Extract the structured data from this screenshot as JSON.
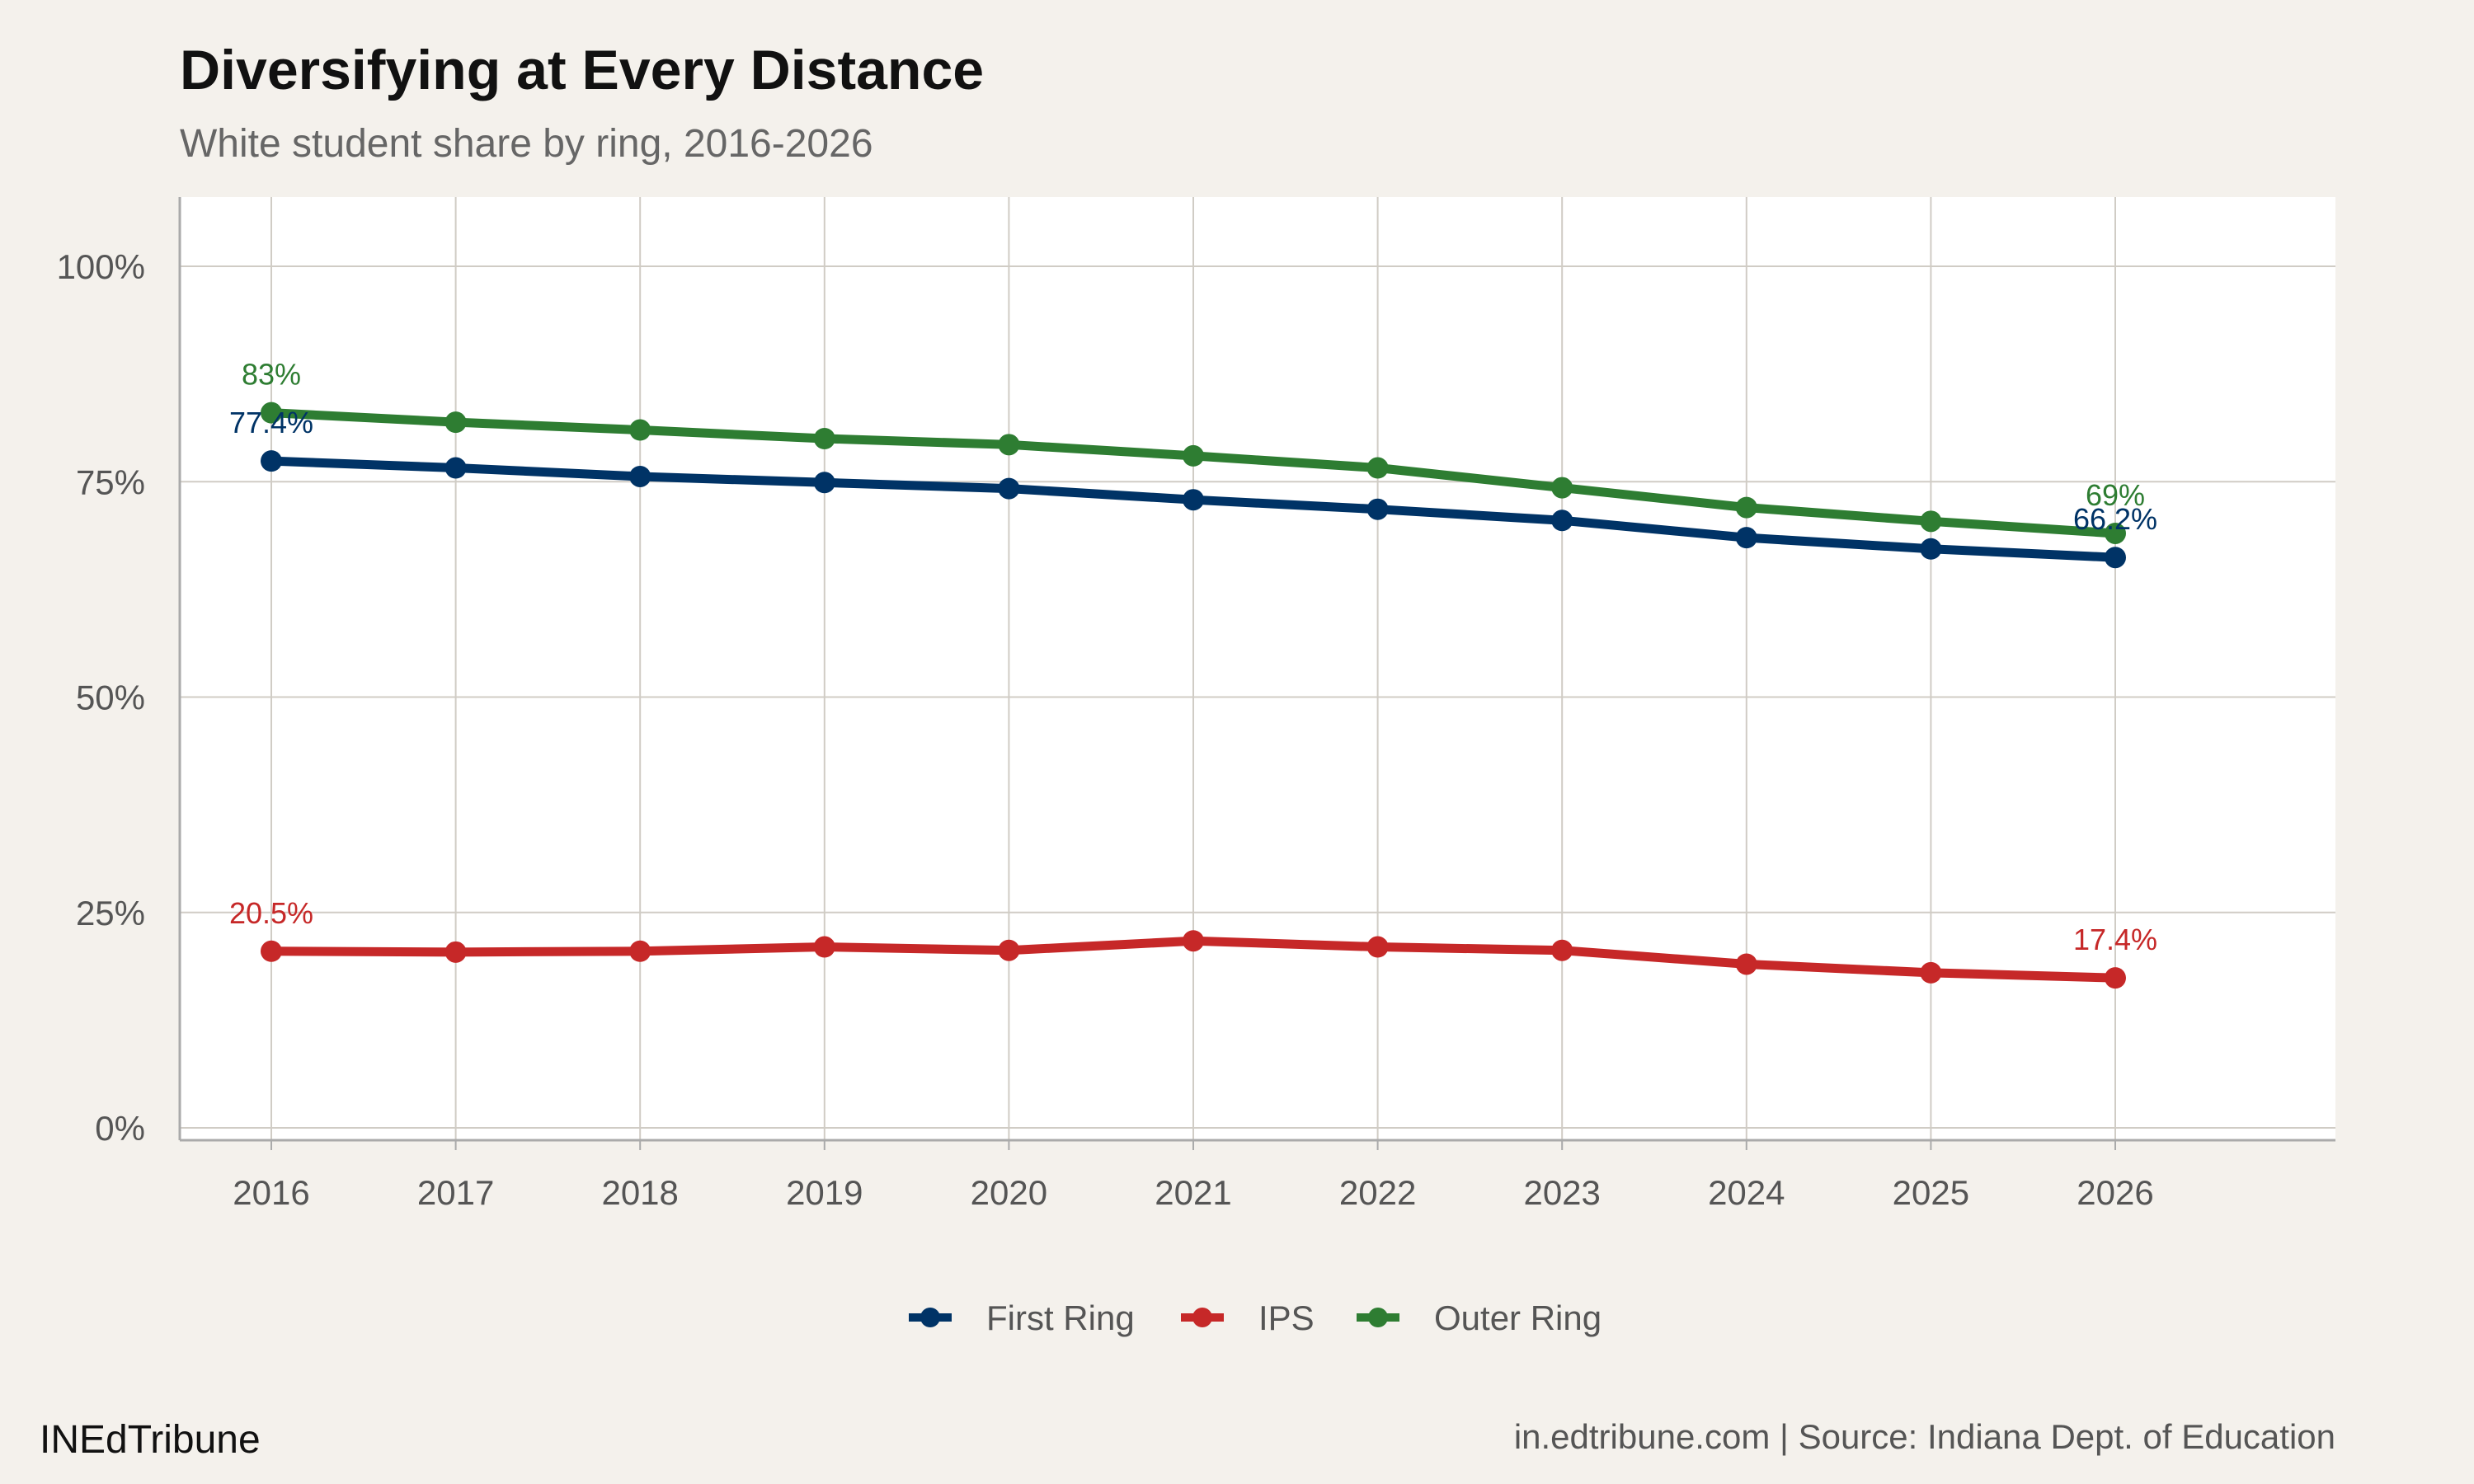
{
  "chart_data": {
    "type": "line",
    "title": "Diversifying at Every Distance",
    "subtitle": "White student share by ring, 2016-2026",
    "xlabel": "",
    "ylabel": "",
    "x": [
      2016,
      2017,
      2018,
      2019,
      2020,
      2021,
      2022,
      2023,
      2024,
      2025,
      2026
    ],
    "ylim": [
      0,
      100
    ],
    "yticks": [
      "0%",
      "25%",
      "50%",
      "75%",
      "100%"
    ],
    "ytick_values": [
      0,
      25,
      50,
      75,
      100
    ],
    "xticks": [
      "2016",
      "2017",
      "2018",
      "2019",
      "2020",
      "2021",
      "2022",
      "2023",
      "2024",
      "2025",
      "2026"
    ],
    "grid": true,
    "legend_position": "bottom",
    "series": [
      {
        "name": "First Ring",
        "color": "#003366",
        "values": [
          77.4,
          76.6,
          75.6,
          74.9,
          74.2,
          72.9,
          71.8,
          70.5,
          68.5,
          67.2,
          66.2
        ],
        "start_label": "77.4%",
        "end_label": "66.2%"
      },
      {
        "name": "IPS",
        "color": "#c62828",
        "values": [
          20.5,
          20.4,
          20.5,
          21.0,
          20.6,
          21.7,
          21.0,
          20.6,
          19.0,
          18.0,
          17.4
        ],
        "start_label": "20.5%",
        "end_label": "17.4%"
      },
      {
        "name": "Outer Ring",
        "color": "#2e7d32",
        "values": [
          83.0,
          81.9,
          81.0,
          80.0,
          79.3,
          78.0,
          76.6,
          74.3,
          72.0,
          70.4,
          69.0
        ],
        "start_label": "83%",
        "end_label": "69%"
      }
    ]
  },
  "footer": {
    "brand": "INEdTribune",
    "source": "in.edtribune.com | Source: Indiana Dept. of Education"
  }
}
